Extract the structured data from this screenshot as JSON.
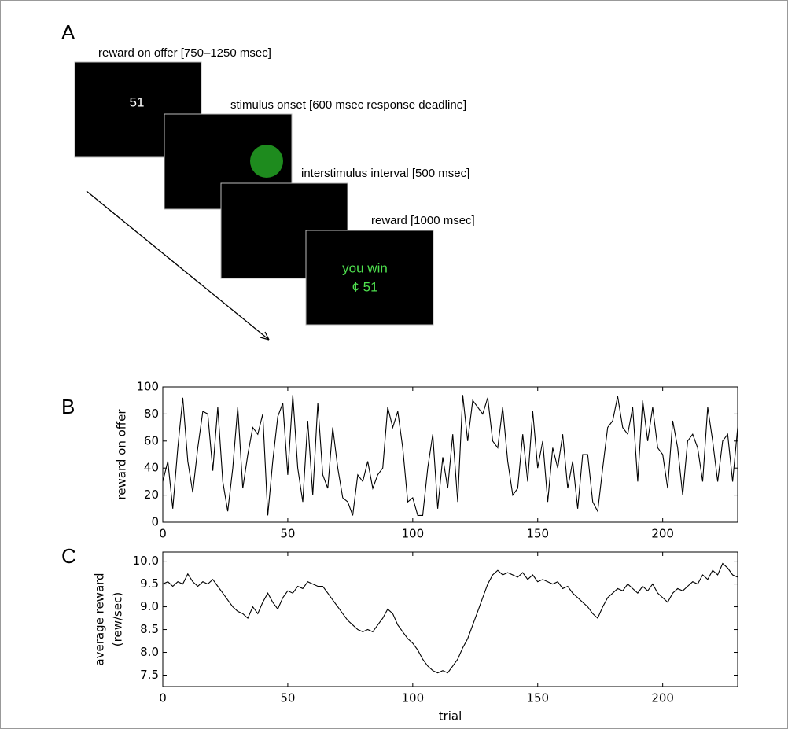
{
  "diagram": {
    "label": "A",
    "steps": [
      {
        "caption": "reward on offer [750–1250 msec]",
        "content": "51"
      },
      {
        "caption": "stimulus onset [600 msec response deadline]"
      },
      {
        "caption": "interstimulus interval [500 msec]"
      },
      {
        "caption": "reward [1000 msec]",
        "content": [
          "you win",
          "¢ 51"
        ]
      }
    ]
  },
  "chart_data": [
    {
      "type": "line",
      "panel_label": "B",
      "ylabel": "reward on offer",
      "color": "#000000",
      "x": [
        0,
        2,
        4,
        6,
        8,
        10,
        12,
        14,
        16,
        18,
        20,
        22,
        24,
        26,
        28,
        30,
        32,
        34,
        36,
        38,
        40,
        42,
        44,
        46,
        48,
        50,
        52,
        54,
        56,
        58,
        60,
        62,
        64,
        66,
        68,
        70,
        72,
        74,
        76,
        78,
        80,
        82,
        84,
        86,
        88,
        90,
        92,
        94,
        96,
        98,
        100,
        102,
        104,
        106,
        108,
        110,
        112,
        114,
        116,
        118,
        120,
        122,
        124,
        126,
        128,
        130,
        132,
        134,
        136,
        138,
        140,
        142,
        144,
        146,
        148,
        150,
        152,
        154,
        156,
        158,
        160,
        162,
        164,
        166,
        168,
        170,
        172,
        174,
        176,
        178,
        180,
        182,
        184,
        186,
        188,
        190,
        192,
        194,
        196,
        198,
        200,
        202,
        204,
        206,
        208,
        210,
        212,
        214,
        216,
        218,
        220,
        222,
        224,
        226,
        228,
        230
      ],
      "values": [
        30,
        45,
        10,
        55,
        92,
        45,
        22,
        55,
        82,
        80,
        38,
        85,
        30,
        8,
        40,
        85,
        25,
        50,
        70,
        65,
        80,
        5,
        45,
        78,
        88,
        35,
        94,
        40,
        15,
        75,
        20,
        88,
        35,
        25,
        70,
        40,
        18,
        15,
        5,
        35,
        30,
        45,
        25,
        35,
        40,
        85,
        70,
        82,
        55,
        15,
        18,
        5,
        5,
        40,
        65,
        10,
        48,
        25,
        65,
        15,
        94,
        60,
        90,
        85,
        80,
        92,
        60,
        55,
        85,
        45,
        20,
        25,
        65,
        30,
        82,
        40,
        60,
        15,
        55,
        40,
        65,
        25,
        45,
        10,
        50,
        50,
        15,
        8,
        40,
        70,
        75,
        93,
        70,
        65,
        85,
        30,
        90,
        60,
        85,
        55,
        50,
        25,
        75,
        55,
        20,
        60,
        65,
        55,
        30,
        85,
        60,
        30,
        60,
        65,
        30,
        70
      ],
      "xlim": [
        0,
        230
      ],
      "ylim": [
        0,
        100
      ],
      "xticks": [
        0,
        50,
        100,
        150,
        200
      ],
      "yticks": [
        0,
        20,
        40,
        60,
        80,
        100
      ]
    },
    {
      "type": "line",
      "panel_label": "C",
      "ylabel": [
        "average reward",
        "(rew/sec)"
      ],
      "xlabel": "trial",
      "color": "#000000",
      "x": [
        0,
        2,
        4,
        6,
        8,
        10,
        12,
        14,
        16,
        18,
        20,
        22,
        24,
        26,
        28,
        30,
        32,
        34,
        36,
        38,
        40,
        42,
        44,
        46,
        48,
        50,
        52,
        54,
        56,
        58,
        60,
        62,
        64,
        66,
        68,
        70,
        72,
        74,
        76,
        78,
        80,
        82,
        84,
        86,
        88,
        90,
        92,
        94,
        96,
        98,
        100,
        102,
        104,
        106,
        108,
        110,
        112,
        114,
        116,
        118,
        120,
        122,
        124,
        126,
        128,
        130,
        132,
        134,
        136,
        138,
        140,
        142,
        144,
        146,
        148,
        150,
        152,
        154,
        156,
        158,
        160,
        162,
        164,
        166,
        168,
        170,
        172,
        174,
        176,
        178,
        180,
        182,
        184,
        186,
        188,
        190,
        192,
        194,
        196,
        198,
        200,
        202,
        204,
        206,
        208,
        210,
        212,
        214,
        216,
        218,
        220,
        222,
        224,
        226,
        228,
        230
      ],
      "values": [
        9.5,
        9.55,
        9.45,
        9.55,
        9.5,
        9.72,
        9.55,
        9.45,
        9.55,
        9.5,
        9.6,
        9.45,
        9.3,
        9.15,
        9.0,
        8.9,
        8.85,
        8.75,
        9.0,
        8.85,
        9.1,
        9.3,
        9.1,
        8.95,
        9.2,
        9.35,
        9.3,
        9.45,
        9.4,
        9.55,
        9.5,
        9.45,
        9.45,
        9.3,
        9.15,
        9.0,
        8.85,
        8.7,
        8.6,
        8.5,
        8.45,
        8.5,
        8.45,
        8.6,
        8.75,
        8.95,
        8.85,
        8.6,
        8.45,
        8.3,
        8.2,
        8.05,
        7.85,
        7.7,
        7.6,
        7.55,
        7.6,
        7.55,
        7.7,
        7.85,
        8.1,
        8.3,
        8.6,
        8.9,
        9.2,
        9.5,
        9.7,
        9.8,
        9.7,
        9.75,
        9.7,
        9.65,
        9.75,
        9.6,
        9.7,
        9.55,
        9.6,
        9.55,
        9.5,
        9.55,
        9.4,
        9.45,
        9.3,
        9.2,
        9.1,
        9.0,
        8.85,
        8.75,
        9.0,
        9.2,
        9.3,
        9.4,
        9.35,
        9.5,
        9.4,
        9.3,
        9.45,
        9.35,
        9.5,
        9.3,
        9.2,
        9.1,
        9.3,
        9.4,
        9.35,
        9.45,
        9.55,
        9.5,
        9.7,
        9.6,
        9.8,
        9.7,
        9.95,
        9.85,
        9.7,
        9.65
      ],
      "xlim": [
        0,
        230
      ],
      "ylim": [
        7.25,
        10.2
      ],
      "xticks": [
        0,
        50,
        100,
        150,
        200
      ],
      "yticks": [
        7.5,
        {
          "value": 8,
          "label": "8.0"
        },
        8.5,
        {
          "value": 9,
          "label": "9.0"
        },
        9.5,
        {
          "value": 10,
          "label": "10.0"
        }
      ]
    }
  ]
}
